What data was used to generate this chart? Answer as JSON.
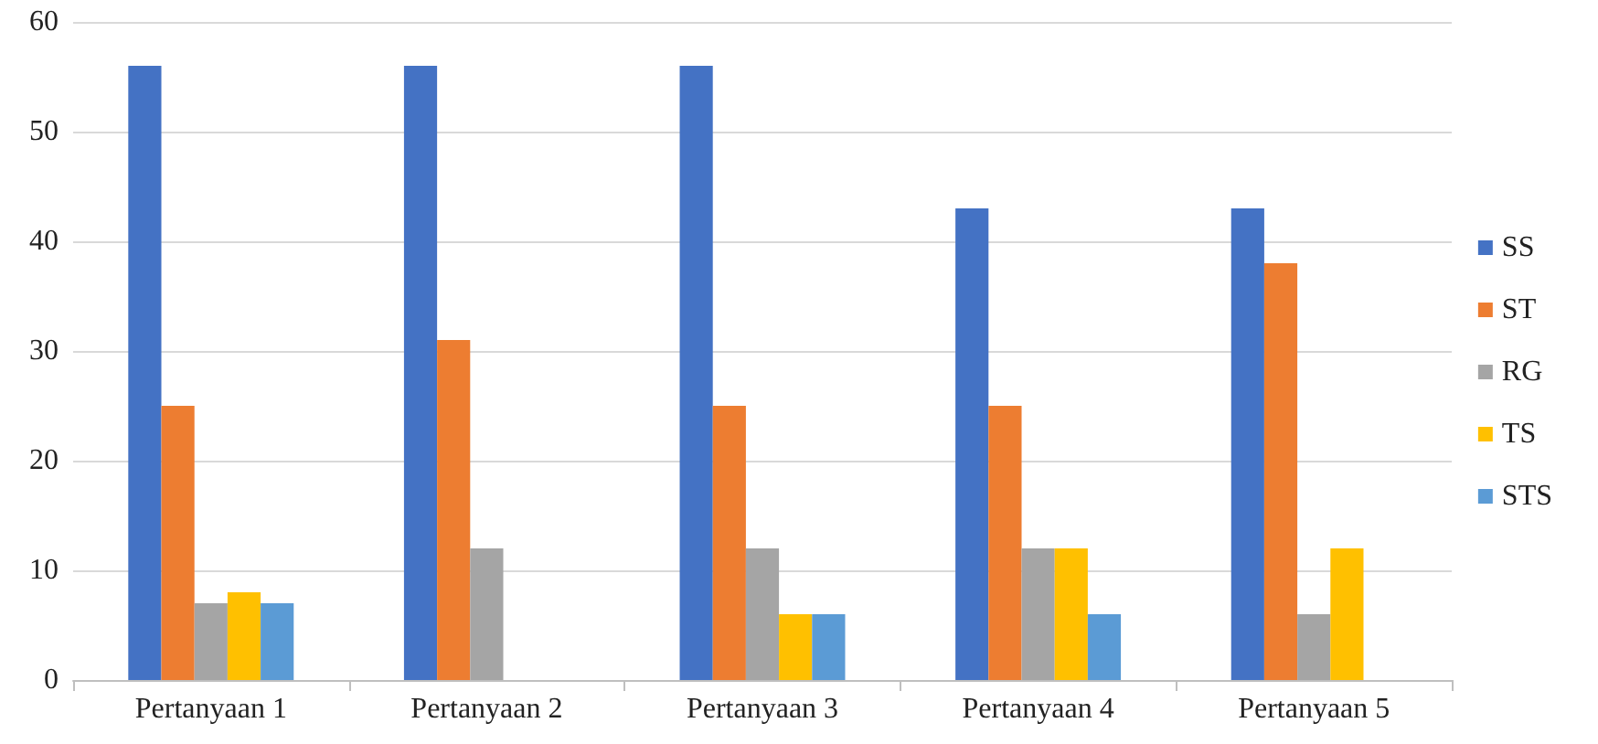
{
  "chart_data": {
    "type": "bar",
    "categories": [
      "Pertanyaan 1",
      "Pertanyaan 2",
      "Pertanyaan 3",
      "Pertanyaan 4",
      "Pertanyaan 5"
    ],
    "series": [
      {
        "name": "SS",
        "color": "#4472c4",
        "values": [
          56,
          56,
          56,
          43,
          43
        ]
      },
      {
        "name": "ST",
        "color": "#ed7d31",
        "values": [
          25,
          31,
          25,
          25,
          38
        ]
      },
      {
        "name": "RG",
        "color": "#a5a5a5",
        "values": [
          7,
          12,
          12,
          12,
          6
        ]
      },
      {
        "name": "TS",
        "color": "#ffc000",
        "values": [
          8,
          0,
          6,
          12,
          12
        ]
      },
      {
        "name": "STS",
        "color": "#5b9bd5",
        "values": [
          7,
          0,
          6,
          6,
          0
        ]
      }
    ],
    "ylim": [
      0,
      60
    ],
    "yticks": [
      0,
      10,
      20,
      30,
      40,
      50,
      60
    ],
    "grid": "y",
    "legend": "right"
  }
}
